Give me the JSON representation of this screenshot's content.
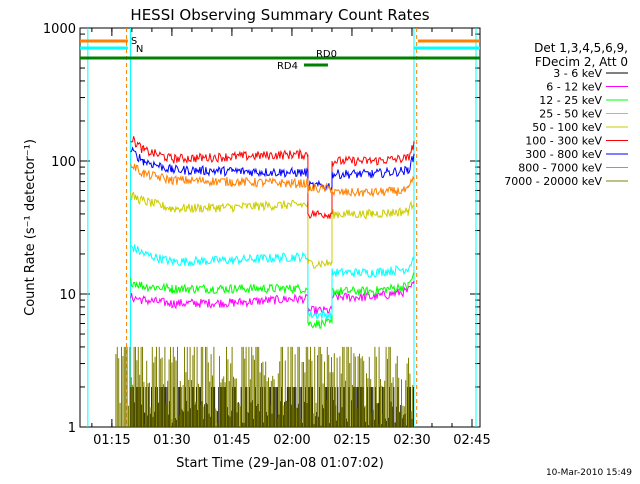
{
  "chart_data": {
    "type": "line",
    "title": "HESSI Observing Summary Count Rates",
    "xlabel": "Start Time (29-Jan-08 01:07:02)",
    "ylabel": "Count Rate (s⁻¹ detector⁻¹)",
    "yscale": "log",
    "ylim": [
      1,
      1000
    ],
    "y_ticks": [
      "1",
      "10",
      "100",
      "1000"
    ],
    "x_ticks": [
      "01:15",
      "01:30",
      "01:45",
      "02:00",
      "02:15",
      "02:30",
      "02:45"
    ],
    "xlim": [
      "01:07:02",
      "02:47:00"
    ],
    "grid": false,
    "legend": {
      "position": "right",
      "header": [
        "Det 1,3,4,5,6,9,",
        "FDecim 2, Att 0"
      ],
      "entries": [
        {
          "label": "3 - 6 keV",
          "color": "#000000"
        },
        {
          "label": "6 - 12 keV",
          "color": "#ff00ff"
        },
        {
          "label": "12 - 25 keV",
          "color": "#00ff00"
        },
        {
          "label": "25 - 50 keV",
          "color": "#00ffff"
        },
        {
          "label": "50 - 100 keV",
          "color": "#cccc00"
        },
        {
          "label": "100 - 300 keV",
          "color": "#ff0000"
        },
        {
          "label": "300 - 800 keV",
          "color": "#0000ff"
        },
        {
          "label": "800 - 7000 keV",
          "color": "#ff8000"
        },
        {
          "label": "7000 - 20000 keV",
          "color": "#808000"
        }
      ]
    },
    "series": [
      {
        "name": "3 - 6 keV",
        "color": "#000000",
        "kind": "noise",
        "x": [
          "01:19:40",
          "02:30:30"
        ],
        "range": [
          1,
          2
        ]
      },
      {
        "name": "6 - 12 keV",
        "color": "#ff00ff",
        "x": [
          "01:19:40",
          "01:23",
          "01:30",
          "01:45",
          "02:00",
          "02:04",
          "02:04",
          "02:10",
          "02:10",
          "02:20",
          "02:29",
          "02:30:30"
        ],
        "y": [
          9.5,
          9,
          8.5,
          8.6,
          9.2,
          9.2,
          7.5,
          7.5,
          9.5,
          9.5,
          10.5,
          12
        ]
      },
      {
        "name": "12 - 25 keV",
        "color": "#00ff00",
        "x": [
          "01:19:40",
          "01:23",
          "01:30",
          "01:45",
          "02:00",
          "02:04",
          "02:04",
          "02:10",
          "02:10",
          "02:20",
          "02:29",
          "02:30:30"
        ],
        "y": [
          12.5,
          11.5,
          11,
          11,
          11,
          11,
          6,
          6,
          10.5,
          10.5,
          11.5,
          14
        ]
      },
      {
        "name": "25 - 50 keV",
        "color": "#00ffff",
        "x": [
          "01:19:40",
          "01:23",
          "01:30",
          "01:45",
          "02:00",
          "02:04",
          "02:04",
          "02:10",
          "02:10",
          "02:20",
          "02:29",
          "02:30:30"
        ],
        "y": [
          23,
          20,
          17.5,
          18,
          19,
          19,
          7,
          7,
          14.5,
          14.5,
          15.5,
          19
        ]
      },
      {
        "name": "50 - 100 keV",
        "color": "#cccc00",
        "x": [
          "01:19:40",
          "01:23",
          "01:30",
          "01:45",
          "02:00",
          "02:04",
          "02:04",
          "02:10",
          "02:10",
          "02:20",
          "02:29",
          "02:30:30"
        ],
        "y": [
          55,
          50,
          44,
          45,
          47,
          47,
          17,
          17,
          40,
          40,
          42,
          50
        ]
      },
      {
        "name": "100 - 300 keV",
        "color": "#ff0000",
        "x": [
          "01:19:40",
          "01:23",
          "01:30",
          "01:45",
          "02:00",
          "02:04",
          "02:04",
          "02:10",
          "02:10",
          "02:20",
          "02:29",
          "02:30:30"
        ],
        "y": [
          150,
          120,
          104,
          108,
          112,
          112,
          40,
          40,
          100,
          100,
          105,
          135
        ]
      },
      {
        "name": "300 - 800 keV",
        "color": "#0000ff",
        "x": [
          "01:19:40",
          "01:23",
          "01:30",
          "01:45",
          "02:00",
          "02:04",
          "02:04",
          "02:10",
          "02:10",
          "02:20",
          "02:29",
          "02:30:30"
        ],
        "y": [
          120,
          100,
          86,
          84,
          82,
          82,
          65,
          65,
          80,
          80,
          85,
          110
        ]
      },
      {
        "name": "800 - 7000 keV",
        "color": "#ff8000",
        "x": [
          "01:19:40",
          "01:23",
          "01:30",
          "01:45",
          "02:00",
          "02:04",
          "02:04",
          "02:10",
          "02:10",
          "02:20",
          "02:29",
          "02:30:30"
        ],
        "y": [
          95,
          80,
          72,
          70,
          68,
          68,
          62,
          62,
          58,
          58,
          60,
          75
        ]
      },
      {
        "name": "7000 - 20000 keV",
        "color": "#808000",
        "kind": "noise",
        "x": [
          "01:16:00",
          "02:30:30"
        ],
        "range": [
          1,
          4
        ]
      }
    ],
    "annotations": {
      "saa_markers": [
        {
          "label": "S",
          "color": "#ff8000"
        },
        {
          "label": "N",
          "color": "#00ffff"
        }
      ],
      "decimation": [
        {
          "label": "RD0",
          "color": "#008000"
        },
        {
          "label": "RD4",
          "color": "#008000"
        }
      ],
      "night_intervals": {
        "color": "#00ffff",
        "times": [
          "01:09",
          "01:19:40",
          "02:30:30",
          "02:46"
        ]
      },
      "saa_intervals": {
        "color": "#ff8000",
        "times": [
          "01:18:40",
          "02:31:10"
        ]
      }
    }
  },
  "footer": {
    "date": "10-Mar-2010 15:49"
  }
}
